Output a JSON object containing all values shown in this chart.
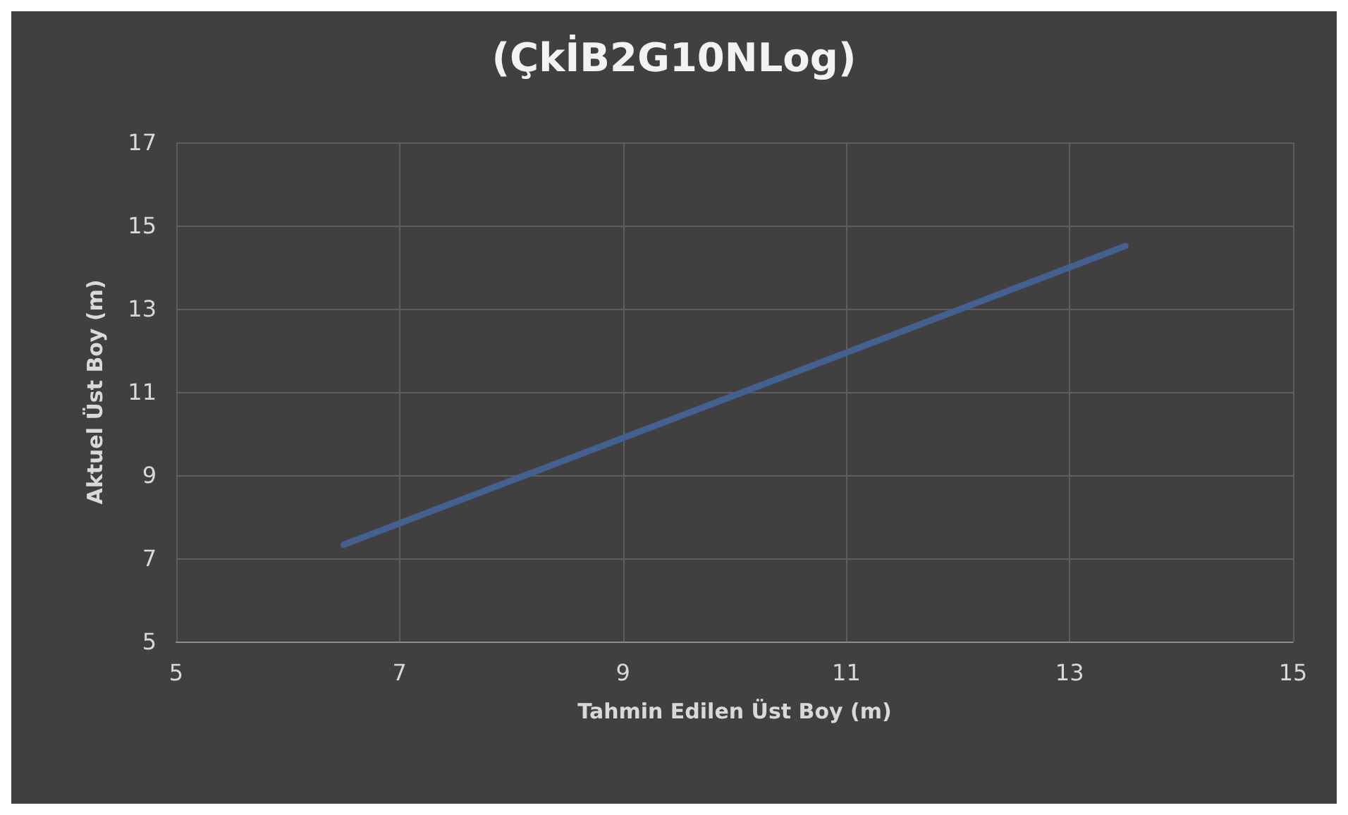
{
  "chart_data": {
    "type": "line",
    "title": "(ÇkİB2G10NLog)",
    "xlabel": "Tahmin Edilen Üst Boy (m)",
    "ylabel": "Aktuel Üst Boy (m)",
    "x": [
      6.5,
      13.5
    ],
    "series": [
      {
        "color": "#44608f",
        "values": [
          7.33,
          14.51
        ]
      }
    ],
    "xlim": [
      5,
      15
    ],
    "xticks": [
      5,
      7,
      9,
      11,
      13,
      15
    ],
    "ylim": [
      5,
      17
    ],
    "yticks": [
      5,
      7,
      9,
      11,
      13,
      15,
      17
    ],
    "grid": true,
    "marker": "none",
    "line_style": "solid"
  }
}
